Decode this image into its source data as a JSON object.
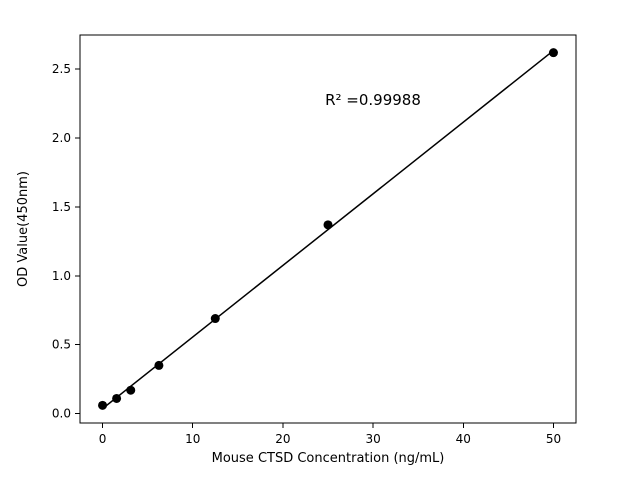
{
  "chart_data": {
    "type": "scatter",
    "title": "",
    "xlabel": "Mouse CTSD Concentration (ng/mL)",
    "ylabel": "OD Value(450nm)",
    "x": [
      0,
      1.56,
      3.125,
      6.25,
      12.5,
      25,
      50
    ],
    "y": [
      0.06,
      0.11,
      0.17,
      0.35,
      0.69,
      1.37,
      2.62
    ],
    "fit": {
      "type": "linear",
      "r_squared": 0.99988
    },
    "annotation": {
      "text": "R² =0.99988",
      "x": 30,
      "y": 2.25
    },
    "xlim": [
      -2.5,
      52.5
    ],
    "ylim": [
      -0.068,
      2.748
    ],
    "xticks": [
      0,
      10,
      20,
      30,
      40,
      50
    ],
    "xtick_labels": [
      "0",
      "10",
      "20",
      "30",
      "40",
      "50"
    ],
    "yticks": [
      0.0,
      0.5,
      1.0,
      1.5,
      2.0,
      2.5
    ],
    "ytick_labels": [
      "0.0",
      "0.5",
      "1.0",
      "1.5",
      "2.0",
      "2.5"
    ],
    "grid": false,
    "legend": null,
    "marker_color": "#000000",
    "line_color": "#000000",
    "background_color": "#ffffff"
  }
}
